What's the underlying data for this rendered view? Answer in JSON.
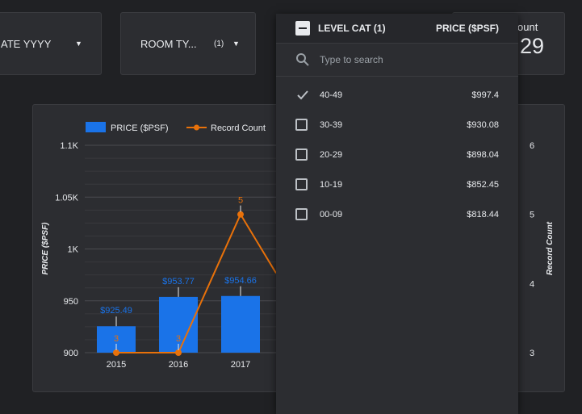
{
  "filters": {
    "date_label": "ATE YYYY",
    "room_type_label": "ROOM TY...",
    "room_type_badge": "(1)"
  },
  "scorecard": {
    "label": "ount",
    "value": "29"
  },
  "dropdown": {
    "header_label": "LEVEL CAT (1)",
    "header_metric": "PRICE ($PSF)",
    "search_placeholder": "Type to search",
    "items": [
      {
        "label": "40-49",
        "value": "$997.4",
        "checked": true
      },
      {
        "label": "30-39",
        "value": "$930.08",
        "checked": false
      },
      {
        "label": "20-29",
        "value": "$898.04",
        "checked": false
      },
      {
        "label": "10-19",
        "value": "$852.45",
        "checked": false
      },
      {
        "label": "00-09",
        "value": "$818.44",
        "checked": false
      }
    ]
  },
  "colors": {
    "bar": "#1a73e8",
    "line": "#e8710a"
  },
  "chart_data": {
    "type": "bar",
    "combo": "bar + line",
    "categories": [
      "2015",
      "2016",
      "2017"
    ],
    "series": [
      {
        "name": "PRICE ($PSF)",
        "type": "bar",
        "axis": "left",
        "values": [
          925.49,
          953.77,
          954.66
        ],
        "labels": [
          "$925.49",
          "$953.77",
          "$954.66"
        ]
      },
      {
        "name": "Record Count",
        "type": "line",
        "axis": "right",
        "values": [
          3,
          3,
          5
        ],
        "labels": [
          "3",
          "3",
          "5"
        ]
      }
    ],
    "ylabel": "PRICE ($PSF)",
    "y2label": "Record Count",
    "ylim": [
      900,
      1100
    ],
    "y2lim": [
      3,
      6
    ],
    "yticks": [
      "900",
      "950",
      "1K",
      "1.05K",
      "1.1K"
    ],
    "y2ticks": [
      "3",
      "4",
      "5",
      "6"
    ],
    "legend_position": "top"
  }
}
